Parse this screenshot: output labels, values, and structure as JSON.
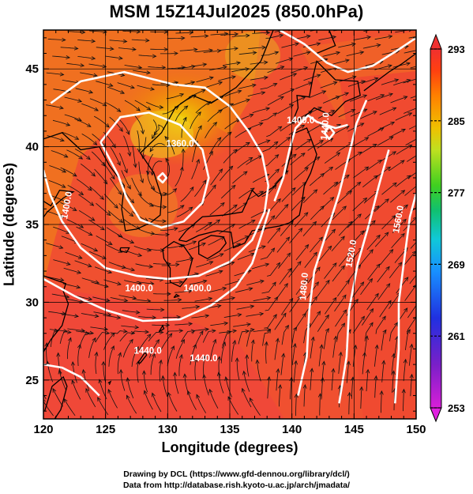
{
  "title": "MSM 15Z14Jul2025 (850.0hPa)",
  "xlabel": "Longitude (degrees)",
  "ylabel": "Latitude  (degrees)",
  "credits": [
    "Drawing by DCL (https://www.gfd-dennou.org/library/dcl/)",
    "Data from http://database.rish.kyoto-u.ac.jp/arch/jmadata/"
  ],
  "chart_data": {
    "type": "map",
    "x_range": [
      120,
      150
    ],
    "y_range": [
      22.5,
      47.5
    ],
    "x_ticks": [
      "120",
      "125",
      "130",
      "135",
      "140",
      "145",
      "150"
    ],
    "y_ticks": [
      "25",
      "30",
      "35",
      "40",
      "45"
    ],
    "grid": true,
    "colorbar": {
      "ticks": [
        "293",
        "285",
        "277",
        "269",
        "261",
        "253"
      ],
      "range": [
        253,
        293
      ],
      "colors": [
        "#d81fd8",
        "#7a1fc8",
        "#2030e0",
        "#1890ff",
        "#10c8d8",
        "#10c070",
        "#40d020",
        "#c0e020",
        "#f0c000",
        "#ff8000",
        "#ff4010",
        "#f03030"
      ]
    },
    "contour_labels": [
      "1360.0",
      "1400.0",
      "1400.0",
      "1400.0",
      "1440.0",
      "1440.0",
      "1480.0",
      "1520.0",
      "1560.0",
      "1400.0",
      "1440.0"
    ]
  }
}
